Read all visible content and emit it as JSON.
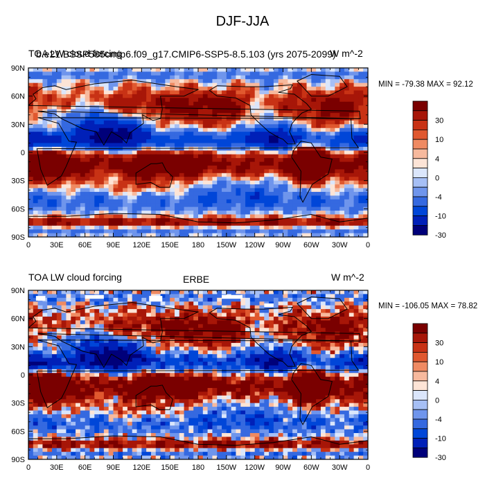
{
  "title": "DJF-JJA",
  "panels": [
    {
      "left_label": "TOA LW cloud forcing",
      "center_label": "b.e21.BSSP585cmip6.f09_g17.CMIP6-SSP5-8.5.103 (yrs 2075-2099)",
      "right_label": "W m^-2",
      "min_max_text": "MIN = -79.38 MAX =  92.12"
    },
    {
      "left_label": "TOA LW cloud forcing",
      "center_label": "ERBE",
      "right_label": "W m^-2",
      "min_max_text": "MIN = -106.05 MAX =  78.82"
    }
  ],
  "colorbar": {
    "labels": [
      "30",
      "10",
      "4",
      "0",
      "-4",
      "-10",
      "-30"
    ],
    "colors": [
      "#00007a",
      "#0020b8",
      "#0046d8",
      "#3569e0",
      "#6f95ec",
      "#a6bff5",
      "#dbe6fb",
      "#fde4d6",
      "#f7b99d",
      "#ef8a62",
      "#e0582f",
      "#c83215",
      "#a71608",
      "#7a0000"
    ]
  },
  "chart_data": [
    {
      "type": "heatmap",
      "projection": "cylindrical-equidistant",
      "title": "DJF-JJA",
      "left_label": "TOA LW cloud forcing",
      "center_label": "b.e21.BSSP585cmip6.f09_g17.CMIP6-SSP5-8.5.103 (yrs 2075-2099)",
      "units": "W m^-2",
      "min": -79.38,
      "max": 92.12,
      "xlim": [
        0,
        360
      ],
      "ylim": [
        -90,
        90
      ],
      "x_ticks": [
        "0",
        "30E",
        "60E",
        "90E",
        "120E",
        "150E",
        "180",
        "150W",
        "120W",
        "90W",
        "60W",
        "30W",
        "0"
      ],
      "y_ticks": [
        "90N",
        "60N",
        "30N",
        "0",
        "30S",
        "60S",
        "90S"
      ],
      "contour_levels": [
        -50,
        -30,
        -20,
        -10,
        -6,
        -4,
        -2,
        0,
        2,
        4,
        6,
        10,
        20,
        30,
        50
      ]
    },
    {
      "type": "heatmap",
      "projection": "cylindrical-equidistant",
      "title": "DJF-JJA",
      "left_label": "TOA LW cloud forcing",
      "center_label": "ERBE",
      "units": "W m^-2",
      "min": -106.05,
      "max": 78.82,
      "xlim": [
        0,
        360
      ],
      "ylim": [
        -90,
        90
      ],
      "x_ticks": [
        "0",
        "30E",
        "60E",
        "90E",
        "120E",
        "150E",
        "180",
        "150W",
        "120W",
        "90W",
        "60W",
        "30W",
        "0"
      ],
      "y_ticks": [
        "90N",
        "60N",
        "30N",
        "0",
        "30S",
        "60S",
        "90S"
      ],
      "contour_levels": [
        -50,
        -30,
        -20,
        -10,
        -6,
        -4,
        -2,
        0,
        2,
        4,
        6,
        10,
        20,
        30,
        50
      ]
    }
  ]
}
